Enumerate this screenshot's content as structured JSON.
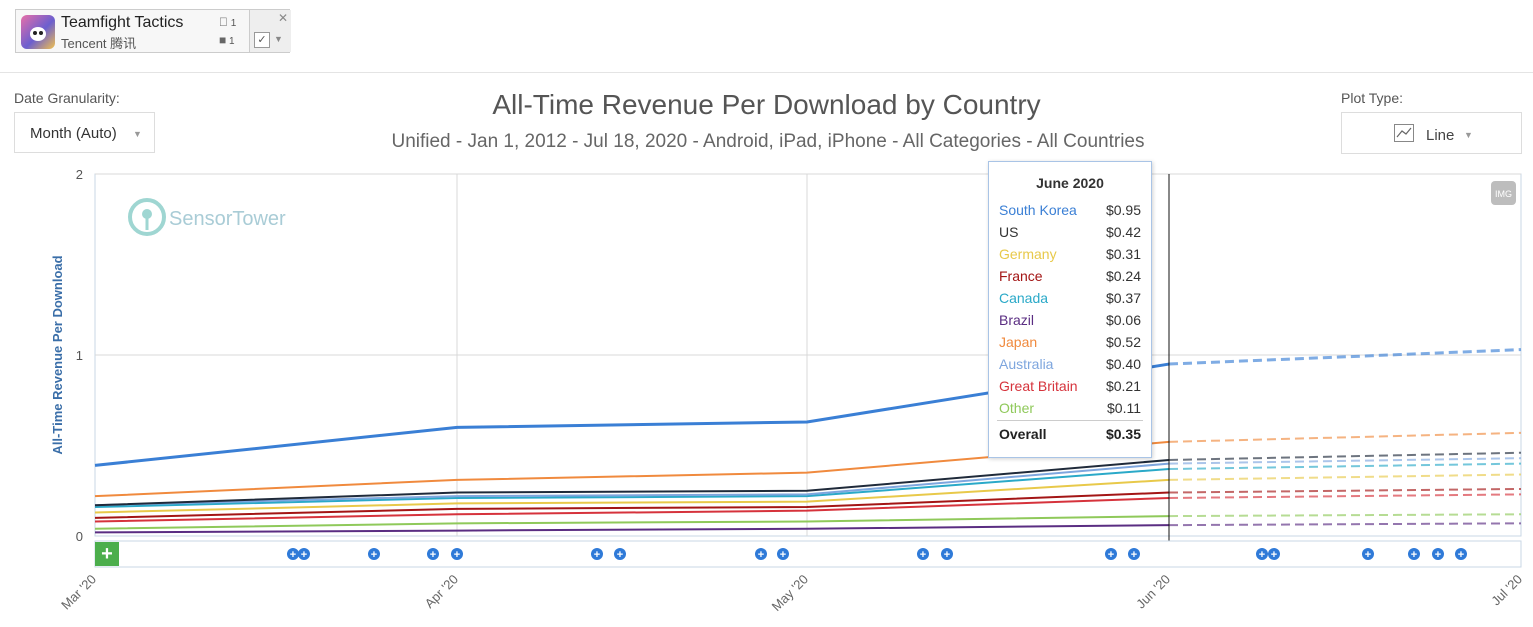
{
  "app": {
    "name": "Teamfight Tactics",
    "publisher": "Tencent 腾讯",
    "ios_count": "1",
    "android_count": "1",
    "close_glyph": "✕",
    "check_glyph": "✓"
  },
  "controls": {
    "granularity_label": "Date Granularity:",
    "granularity_value": "Month (Auto)",
    "plot_type_label": "Plot Type:",
    "plot_type_value": "Line",
    "img_badge": "IMG",
    "watermark": "SensorTower"
  },
  "tooltip": {
    "title": "June 2020",
    "rows": [
      {
        "name": "South Korea",
        "value": "$0.95",
        "color": "#3a7fd5"
      },
      {
        "name": "US",
        "value": "$0.42",
        "color": "#333333"
      },
      {
        "name": "Germany",
        "value": "$0.31",
        "color": "#e8c94a"
      },
      {
        "name": "France",
        "value": "$0.24",
        "color": "#a31515"
      },
      {
        "name": "Canada",
        "value": "$0.37",
        "color": "#2aa9c8"
      },
      {
        "name": "Brazil",
        "value": "$0.06",
        "color": "#5a2d82"
      },
      {
        "name": "Japan",
        "value": "$0.52",
        "color": "#f08a3e"
      },
      {
        "name": "Australia",
        "value": "$0.40",
        "color": "#7ea6de"
      },
      {
        "name": "Great Britain",
        "value": "$0.21",
        "color": "#d6333c"
      },
      {
        "name": "Other",
        "value": "$0.11",
        "color": "#8fc95a"
      }
    ],
    "total_name": "Overall",
    "total_value": "$0.35"
  },
  "chart_data": {
    "type": "line",
    "title": "All-Time Revenue Per Download by Country",
    "subtitle": "Unified - Jan 1, 2012 - Jul 18, 2020 - Android, iPad, iPhone - All Categories - All Countries",
    "ylabel": "All-Time Revenue Per Download",
    "xlabel": "",
    "ylim": [
      0,
      2
    ],
    "yticks": [
      "0",
      "1",
      "2"
    ],
    "x": [
      "Mar '20",
      "Apr '20",
      "May '20",
      "Jun '20",
      "Jul '20"
    ],
    "projected_from_index": 3,
    "grid": true,
    "series": [
      {
        "name": "Other",
        "color": "#8fc95a",
        "values": [
          0.04,
          0.07,
          0.08,
          0.11,
          0.12
        ]
      },
      {
        "name": "Brazil",
        "color": "#5a2d82",
        "values": [
          0.02,
          0.03,
          0.04,
          0.06,
          0.07
        ]
      },
      {
        "name": "Great Britain",
        "color": "#d6333c",
        "values": [
          0.08,
          0.12,
          0.14,
          0.21,
          0.23
        ]
      },
      {
        "name": "France",
        "color": "#a31515",
        "values": [
          0.1,
          0.15,
          0.16,
          0.24,
          0.26
        ]
      },
      {
        "name": "Germany",
        "color": "#e8c94a",
        "values": [
          0.13,
          0.18,
          0.19,
          0.31,
          0.34
        ]
      },
      {
        "name": "Canada",
        "color": "#2aa9c8",
        "values": [
          0.16,
          0.21,
          0.22,
          0.37,
          0.4
        ]
      },
      {
        "name": "Australia",
        "color": "#7ea6de",
        "values": [
          0.17,
          0.22,
          0.23,
          0.4,
          0.43
        ]
      },
      {
        "name": "US",
        "color": "#1f2a3a",
        "values": [
          0.17,
          0.24,
          0.25,
          0.42,
          0.46
        ]
      },
      {
        "name": "Japan",
        "color": "#f08a3e",
        "values": [
          0.22,
          0.31,
          0.35,
          0.52,
          0.57
        ]
      },
      {
        "name": "South Korea",
        "color": "#3a7fd5",
        "values": [
          0.39,
          0.6,
          0.63,
          0.95,
          1.03
        ]
      }
    ],
    "event_markers": [
      "+",
      "+",
      "+",
      "+",
      "+",
      "+",
      "+",
      "+",
      "+",
      "+",
      "+",
      "+",
      "+",
      "+",
      "+",
      "+",
      "+",
      "+",
      "+",
      "+",
      "+"
    ]
  }
}
